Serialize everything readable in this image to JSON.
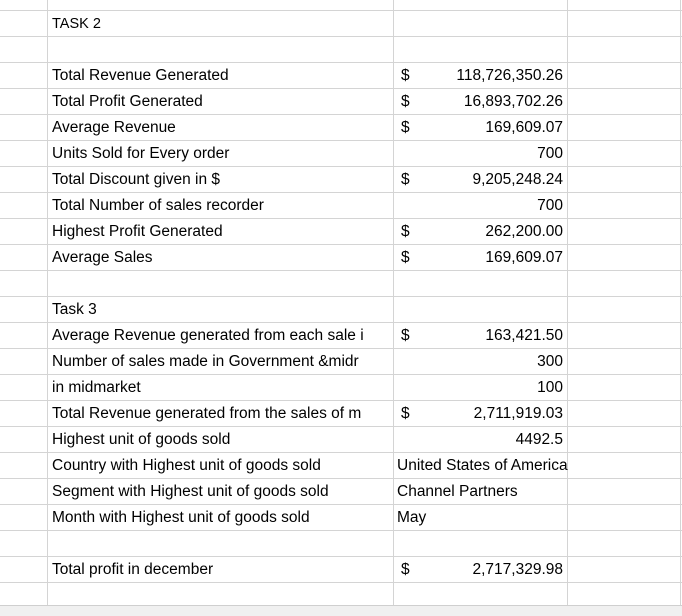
{
  "task2_header": "TASK 2",
  "task2_rows": [
    {
      "label": "Total Revenue  Generated",
      "currency": "$",
      "value": "118,726,350.26"
    },
    {
      "label": "Total Profit Generated",
      "currency": "$",
      "value": "16,893,702.26"
    },
    {
      "label": "Average Revenue",
      "currency": "$",
      "value": "169,609.07"
    },
    {
      "label": "Units Sold for Every order",
      "currency": "",
      "value": "700"
    },
    {
      "label": "Total Discount given in $",
      "currency": "$",
      "value": "9,205,248.24"
    },
    {
      "label": "Total Number of sales recorder",
      "currency": "",
      "value": "700"
    },
    {
      "label": "Highest Profit Generated",
      "currency": "$",
      "value": "262,200.00"
    },
    {
      "label": "Average Sales",
      "currency": "$",
      "value": "169,609.07"
    }
  ],
  "task3_header": "Task 3",
  "task3_rows": [
    {
      "label": "Average  Revenue generated from each sale i",
      "currency": "$",
      "value": "163,421.50"
    },
    {
      "label": "Number of sales made in Government &midr",
      "currency": "",
      "value": "300"
    },
    {
      "label": "in midmarket",
      "currency": "",
      "value": "100"
    },
    {
      "label": "Total Revenue generated from the sales of m",
      "currency": "$",
      "value": "2,711,919.03"
    },
    {
      "label": "Highest unit of goods sold",
      "currency": "",
      "value": "4492.5"
    },
    {
      "label": "Country with Highest unit of goods sold",
      "text": "United States of America"
    },
    {
      "label": "Segment with Highest unit of goods sold",
      "text": "Channel Partners"
    },
    {
      "label": "Month with Highest unit of goods sold",
      "text": "May"
    }
  ],
  "footer_row": {
    "label": "Total profit in december",
    "currency": "$",
    "value": "2,717,329.98"
  },
  "colors": {
    "gridline": "#d4d4d4",
    "background": "#ffffff",
    "text": "#000000"
  }
}
